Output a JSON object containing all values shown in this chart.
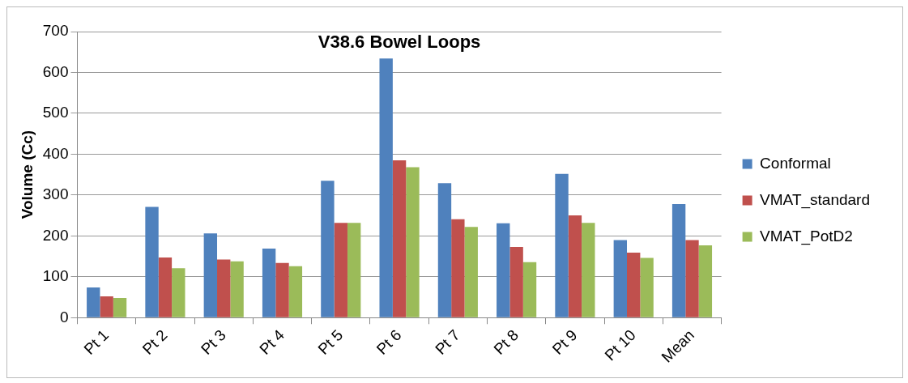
{
  "chart_data": {
    "type": "bar",
    "title": "V38.6 Bowel Loops",
    "ylabel": "Volume (Cc)",
    "categories": [
      "Pt 1",
      "Pt 2",
      "Pt 3",
      "Pt 4",
      "Pt 5",
      "Pt 6",
      "Pt 7",
      "Pt 8",
      "Pt 9",
      "Pt 10",
      "Mean"
    ],
    "series": [
      {
        "name": "Conformal",
        "color": "#4f81bd",
        "values": [
          74,
          271,
          206,
          169,
          335,
          634,
          329,
          231,
          352,
          190,
          278
        ]
      },
      {
        "name": "VMAT_standard",
        "color": "#c0504d",
        "values": [
          52,
          147,
          142,
          134,
          232,
          385,
          241,
          173,
          250,
          159,
          190
        ]
      },
      {
        "name": "VMAT_PotD2",
        "color": "#9bbb59",
        "values": [
          48,
          121,
          138,
          126,
          232,
          368,
          222,
          136,
          232,
          146,
          177
        ]
      }
    ],
    "ylim": [
      0,
      700
    ],
    "yticks": [
      0,
      100,
      200,
      300,
      400,
      500,
      600,
      700
    ],
    "grid": "y",
    "legend": "right"
  }
}
